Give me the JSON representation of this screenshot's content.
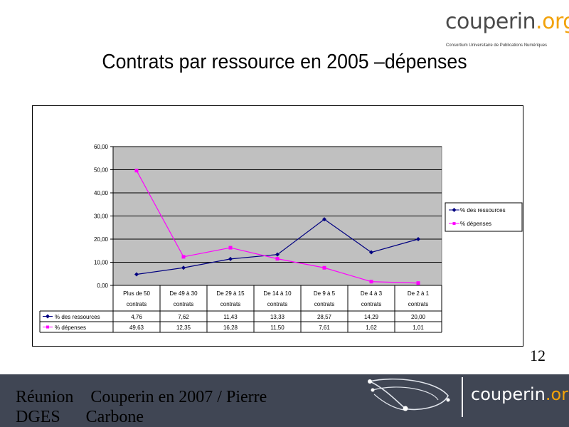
{
  "logo": {
    "word": "couperin",
    "org": ".org",
    "tagline": "Consortium Universitaire de Publications Numériques"
  },
  "title": "Contrats par ressource en 2005 –dépenses",
  "page_number": "12",
  "footer": {
    "text": "Réunion    Couperin en 2007 / Pierre\nDGES      Carbone",
    "logo_word": "couperin",
    "logo_org": ".org"
  },
  "colors": {
    "series_ressources": "#000080",
    "series_depenses": "#ff00ff",
    "plot_bg": "#c0c0c0",
    "footer_bg": "#404654",
    "logo_accent": "#f2a20a"
  },
  "chart_data": {
    "type": "line",
    "categories": [
      [
        "Plus de 50",
        "contrats"
      ],
      [
        "De 49 à 30",
        "contrats"
      ],
      [
        "De 29 à  15",
        "contrats"
      ],
      [
        "De 14 à 10",
        "contrats"
      ],
      [
        "De 9 à 5",
        "contrats"
      ],
      [
        "De 4 à 3",
        "contrats"
      ],
      [
        "De 2 à 1",
        "contrats"
      ]
    ],
    "ylim": [
      0,
      60
    ],
    "yticks": [
      "0,00",
      "10,00",
      "20,00",
      "30,00",
      "40,00",
      "50,00",
      "60,00"
    ],
    "legend_position": "right",
    "grid": true,
    "series": [
      {
        "name": "% des ressources",
        "marker": "diamond",
        "values": [
          4.76,
          7.62,
          11.43,
          13.33,
          28.57,
          14.29,
          20.0
        ],
        "labels": [
          "4,76",
          "7,62",
          "11,43",
          "13,33",
          "28,57",
          "14,29",
          "20,00"
        ]
      },
      {
        "name": "% dépenses",
        "marker": "square",
        "values": [
          49.63,
          12.35,
          16.28,
          11.5,
          7.61,
          1.62,
          1.01
        ],
        "labels": [
          "49,63",
          "12,35",
          "16,28",
          "11,50",
          "7,61",
          "1,62",
          "1,01"
        ]
      }
    ]
  }
}
